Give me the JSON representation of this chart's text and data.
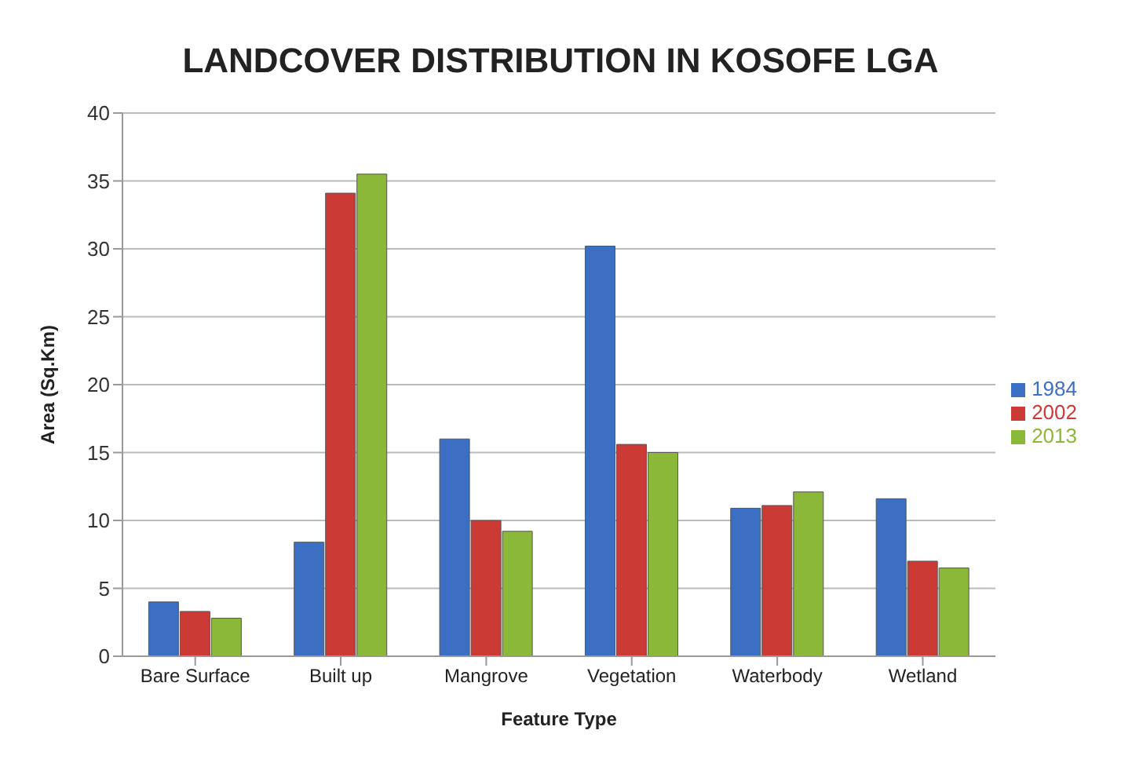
{
  "chart_data": {
    "type": "bar",
    "title": "LANDCOVER DISTRIBUTION IN KOSOFE LGA",
    "xlabel": "Feature Type",
    "ylabel": "Area (Sq.Km)",
    "categories": [
      "Bare Surface",
      "Built up",
      "Mangrove",
      "Vegetation",
      "Waterbody",
      "Wetland"
    ],
    "series": [
      {
        "name": "1984",
        "color": "#3a6fc4",
        "values": [
          4.0,
          8.4,
          16.0,
          30.2,
          10.9,
          11.6
        ]
      },
      {
        "name": "2002",
        "color": "#cc3a36",
        "values": [
          3.3,
          34.1,
          10.0,
          15.6,
          11.1,
          7.0
        ]
      },
      {
        "name": "2013",
        "color": "#8cb83a",
        "values": [
          2.8,
          35.5,
          9.2,
          15.0,
          12.1,
          6.5
        ]
      }
    ],
    "ylim": [
      0,
      40
    ],
    "yticks": [
      0,
      5,
      10,
      15,
      20,
      25,
      30,
      35,
      40
    ],
    "grid": "y",
    "legend": "right"
  }
}
